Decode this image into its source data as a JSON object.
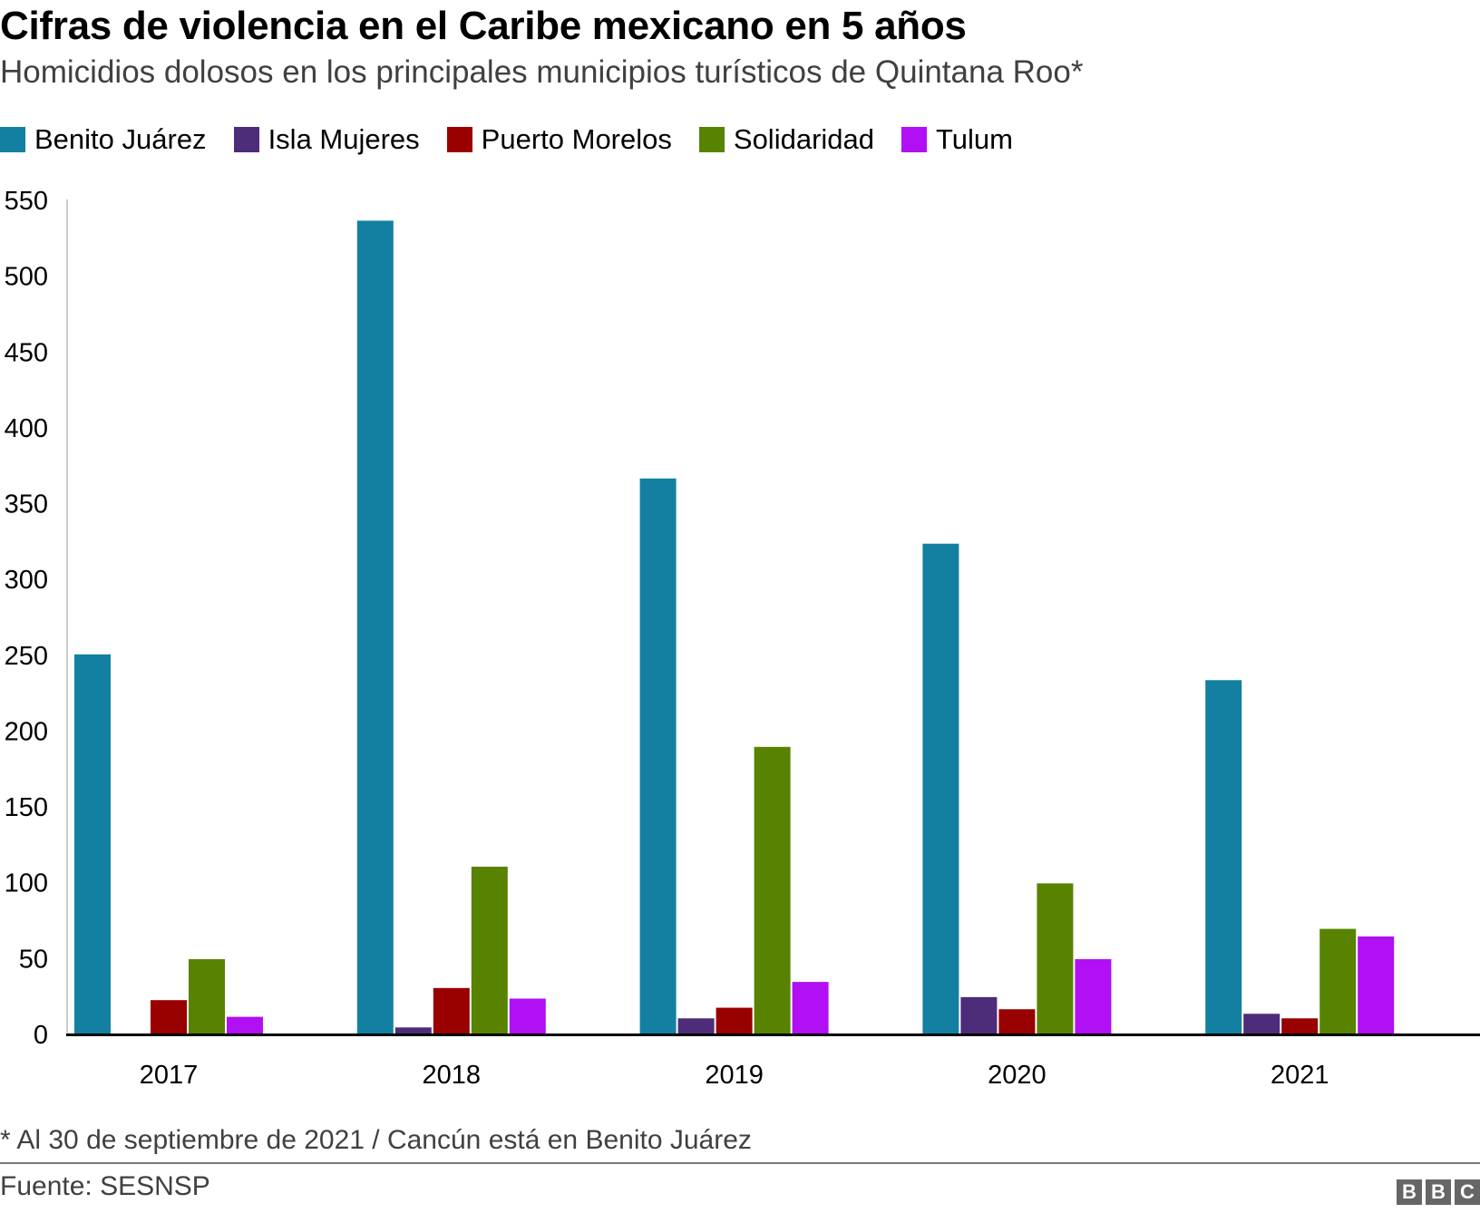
{
  "header": {
    "title": "Cifras de violencia en el Caribe mexicano en 5 años",
    "subtitle": "Homicidios dolosos en los principales municipios turísticos de Quintana Roo*"
  },
  "footer": {
    "note": "* Al 30 de septiembre de 2021 / Cancún está en Benito Juárez",
    "source": "Fuente: SESNSP",
    "logo_letters": [
      "B",
      "B",
      "C"
    ]
  },
  "chart_data": {
    "type": "bar",
    "title": "Cifras de violencia en el Caribe mexicano en 5 años",
    "subtitle": "Homicidios dolosos en los principales municipios turísticos de Quintana Roo*",
    "xlabel": "",
    "ylabel": "",
    "categories": [
      "2017",
      "2018",
      "2019",
      "2020",
      "2021"
    ],
    "ylim": [
      0,
      550
    ],
    "yticks": [
      0,
      50,
      100,
      150,
      200,
      250,
      300,
      350,
      400,
      450,
      500,
      550
    ],
    "grid": false,
    "legend_position": "top-left",
    "series": [
      {
        "name": "Benito Juárez",
        "color": "#1380A1",
        "values": [
          250,
          536,
          366,
          323,
          233
        ]
      },
      {
        "name": "Isla Mujeres",
        "color": "#4D2C7A",
        "values": [
          0,
          4,
          10,
          24,
          13
        ]
      },
      {
        "name": "Puerto Morelos",
        "color": "#990000",
        "values": [
          22,
          30,
          17,
          16,
          10
        ]
      },
      {
        "name": "Solidaridad",
        "color": "#588300",
        "values": [
          49,
          110,
          189,
          99,
          69
        ]
      },
      {
        "name": "Tulum",
        "color": "#B10FF4",
        "values": [
          11,
          23,
          34,
          49,
          64
        ]
      }
    ]
  }
}
